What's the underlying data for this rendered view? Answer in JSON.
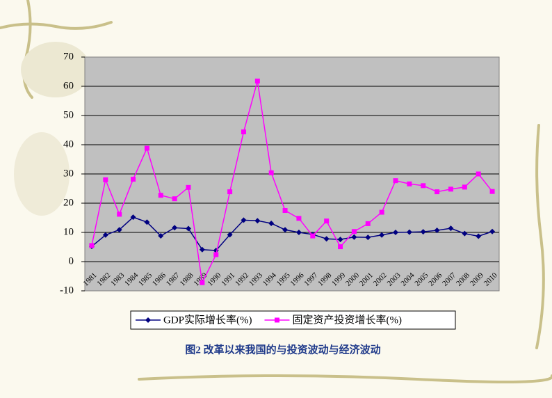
{
  "chart_data": {
    "type": "line",
    "title": "图2  改革以来我国的与投资波动与经济波动",
    "categories": [
      "1981",
      "1982",
      "1983",
      "1984",
      "1985",
      "1986",
      "1987",
      "1988",
      "1989",
      "1990",
      "1991",
      "1992",
      "1993",
      "1994",
      "1995",
      "1996",
      "1997",
      "1998",
      "1999",
      "2000",
      "2001",
      "2002",
      "2003",
      "2004",
      "2005",
      "2006",
      "2007",
      "2008",
      "2009",
      "2010"
    ],
    "series": [
      {
        "name": "GDP实际增长率(%)",
        "color": "#000080",
        "marker": "diamond",
        "values": [
          5.2,
          9.1,
          10.9,
          15.2,
          13.5,
          8.8,
          11.6,
          11.3,
          4.1,
          3.8,
          9.2,
          14.2,
          14.0,
          13.1,
          10.9,
          10.0,
          9.3,
          7.8,
          7.6,
          8.4,
          8.3,
          9.1,
          10.0,
          10.1,
          10.2,
          10.7,
          11.4,
          9.6,
          8.7,
          10.3
        ]
      },
      {
        "name": "固定资产投资增长率(%)",
        "color": "#ff00ff",
        "marker": "square",
        "values": [
          5.5,
          28.0,
          16.2,
          28.2,
          38.8,
          22.7,
          21.5,
          25.4,
          -7.2,
          2.4,
          23.9,
          44.4,
          61.8,
          30.4,
          17.5,
          14.8,
          8.8,
          13.9,
          5.1,
          10.3,
          13.0,
          16.9,
          27.7,
          26.6,
          26.0,
          23.9,
          24.8,
          25.5,
          30.0,
          24.0
        ]
      }
    ],
    "ylim": [
      -10,
      70
    ],
    "yticks": [
      -10,
      0,
      10,
      20,
      30,
      40,
      50,
      60,
      70
    ],
    "grid": true,
    "legend": "bottom"
  }
}
